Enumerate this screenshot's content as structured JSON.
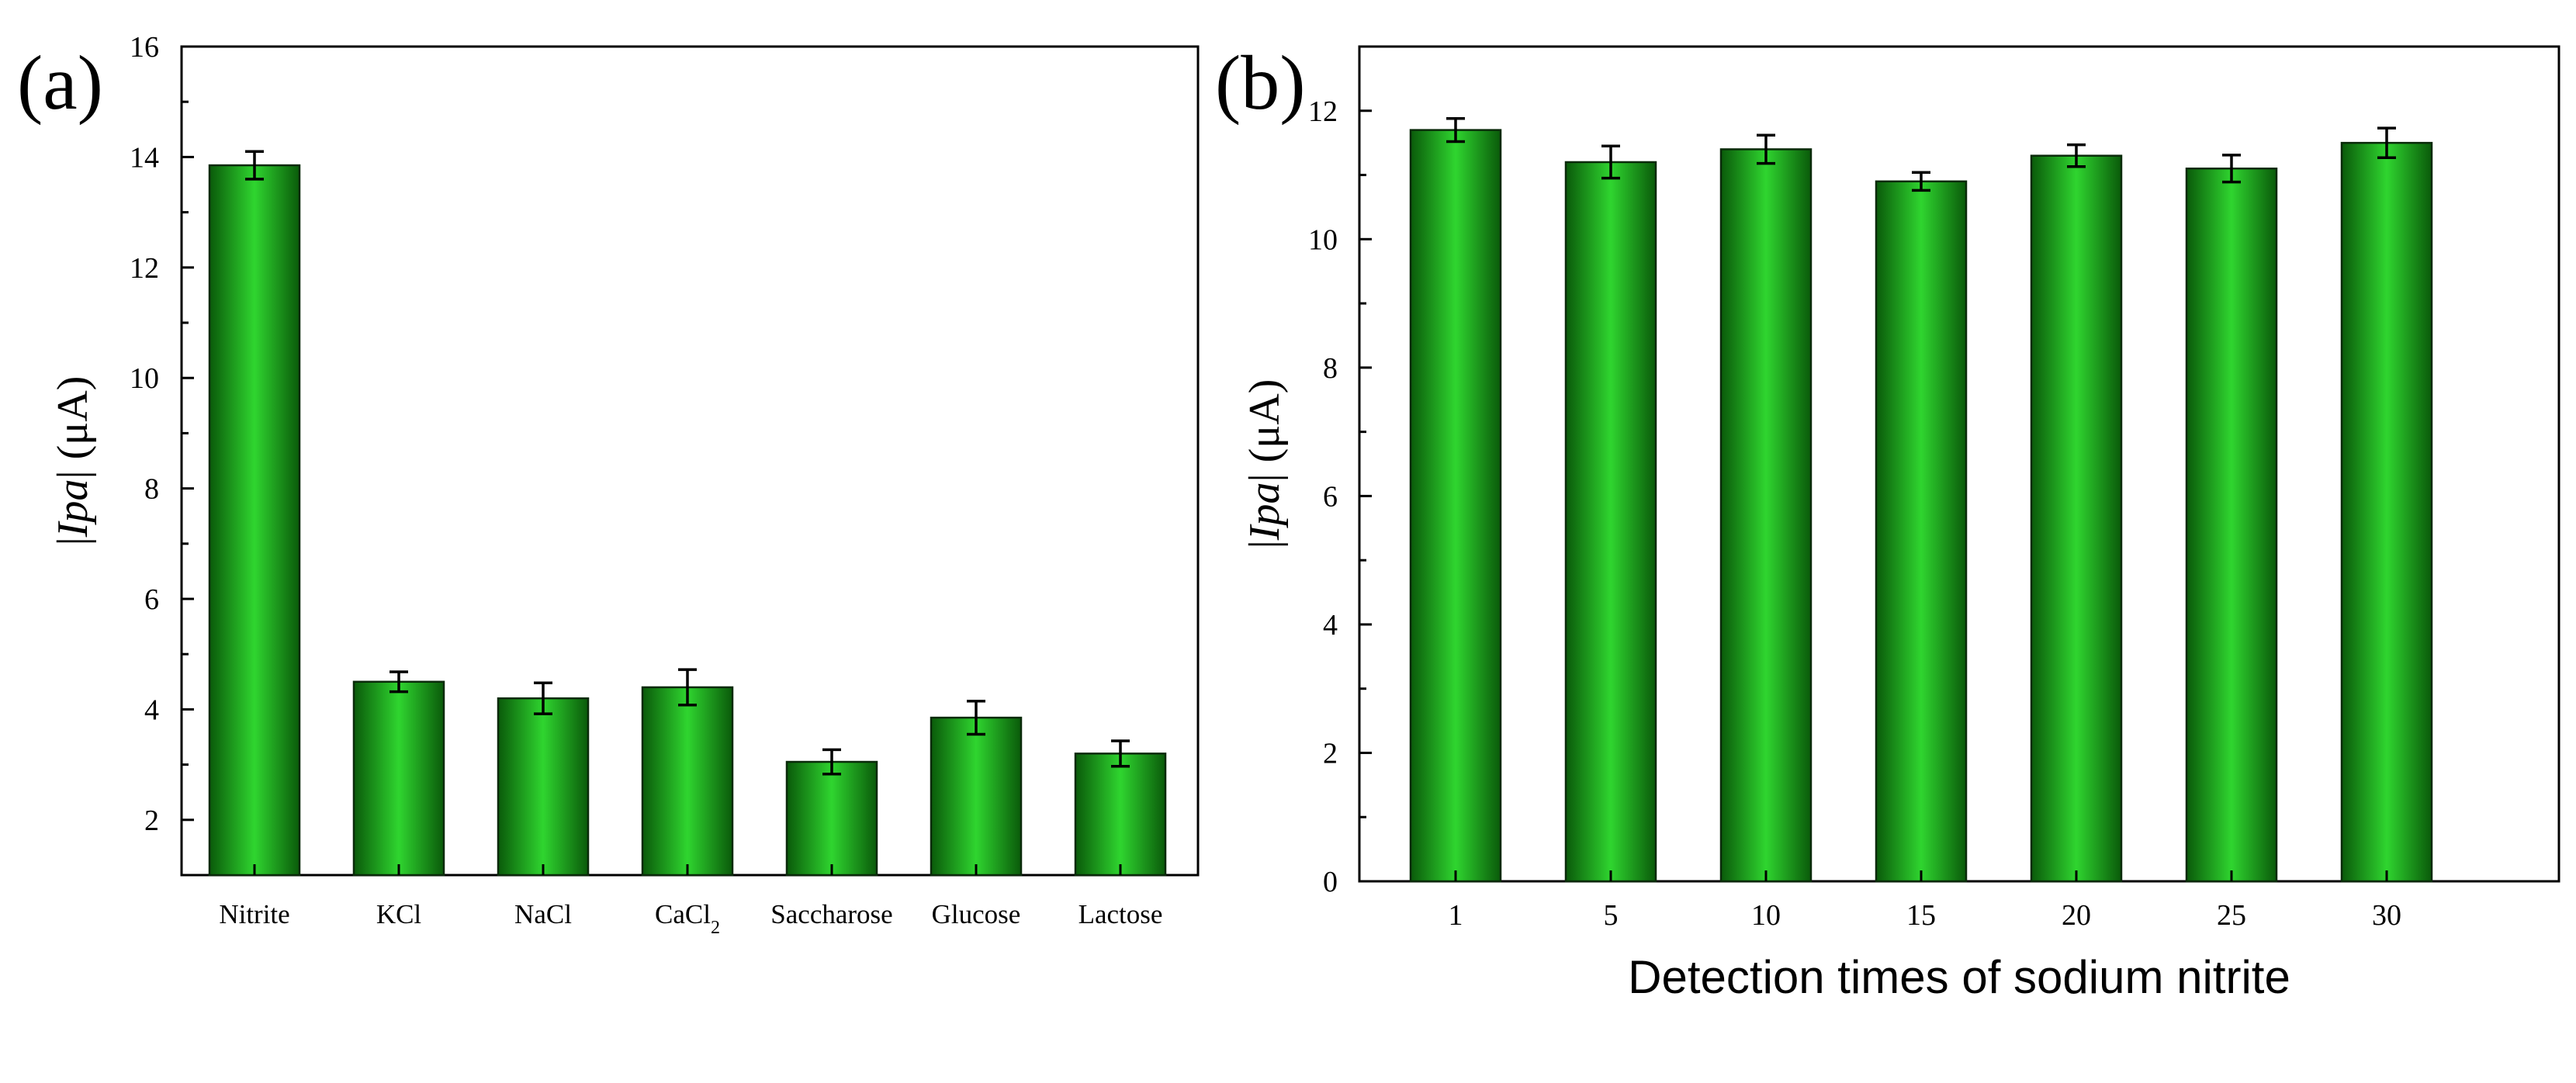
{
  "colors": {
    "bar_light": "#2fd52f",
    "bar_dark": "#0a5a0a",
    "axis": "#000000"
  },
  "chart_data": [
    {
      "type": "bar",
      "panel_label": "(a)",
      "categories": [
        "Nitrite",
        "KCl",
        "NaCl",
        "CaCl2",
        "Saccharose",
        "Glucose",
        "Lactose"
      ],
      "category_labels": [
        {
          "base": "Nitrite"
        },
        {
          "base": "KCl"
        },
        {
          "base": "NaCl"
        },
        {
          "base": "CaCl",
          "sub": "2"
        },
        {
          "base": "Saccharose"
        },
        {
          "base": "Glucose"
        },
        {
          "base": "Lactose"
        }
      ],
      "values": [
        13.85,
        4.5,
        4.2,
        4.4,
        3.05,
        3.85,
        3.2
      ],
      "errors": [
        0.25,
        0.18,
        0.28,
        0.32,
        0.22,
        0.3,
        0.23
      ],
      "xlabel": "",
      "ylabel": {
        "prefix": "|",
        "italic": "Ipa",
        "suffix": "| (μA)"
      },
      "ylim": [
        1,
        16
      ],
      "yticks": [
        2,
        4,
        6,
        8,
        10,
        12,
        14,
        16
      ],
      "ytick_labels": [
        "2",
        "4",
        "6",
        "8",
        "10",
        "12",
        "14",
        "16"
      ]
    },
    {
      "type": "bar",
      "panel_label": "(b)",
      "categories": [
        "1",
        "5",
        "10",
        "15",
        "20",
        "25",
        "30"
      ],
      "category_labels": [
        {
          "base": "1"
        },
        {
          "base": "5"
        },
        {
          "base": "10"
        },
        {
          "base": "15"
        },
        {
          "base": "20"
        },
        {
          "base": "25"
        },
        {
          "base": "30"
        }
      ],
      "values": [
        11.7,
        11.2,
        11.4,
        10.9,
        11.3,
        11.1,
        11.5
      ],
      "errors": [
        0.18,
        0.25,
        0.22,
        0.14,
        0.17,
        0.21,
        0.23
      ],
      "xlabel": "Detection times of sodium nitrite",
      "ylabel": {
        "prefix": "|",
        "italic": "Ipa",
        "suffix": "| (μA)"
      },
      "ylim": [
        0,
        13
      ],
      "yticks": [
        0,
        2,
        4,
        6,
        8,
        10,
        12
      ],
      "ytick_labels": [
        "0",
        "2",
        "4",
        "6",
        "8",
        "10",
        "12"
      ]
    }
  ]
}
